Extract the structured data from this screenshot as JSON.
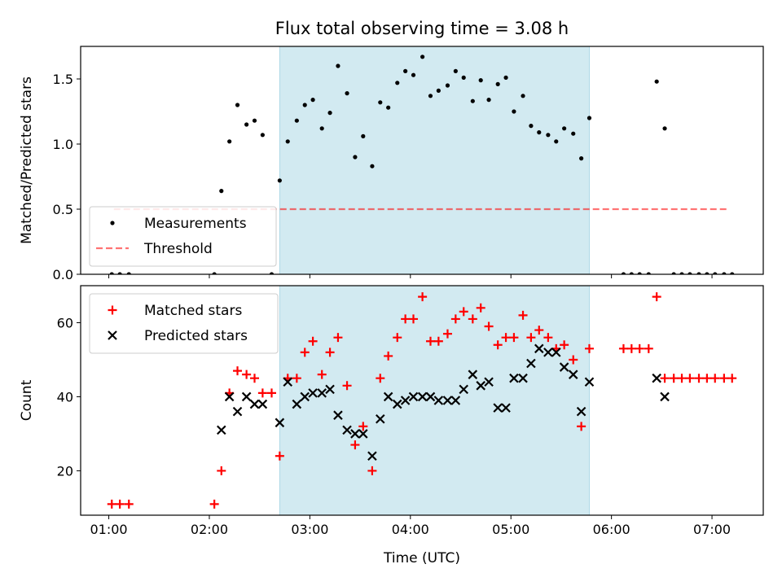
{
  "chart_data": {
    "type": "scatter",
    "title": "Flux total observing time = 3.08 h",
    "xlabel": "Time (UTC)",
    "x_tick_labels": [
      "01:00",
      "02:00",
      "03:00",
      "04:00",
      "05:00",
      "06:00",
      "07:00"
    ],
    "x_ticks_hours": [
      1,
      2,
      3,
      4,
      5,
      6,
      7
    ],
    "xlim_hours": [
      0.72,
      7.51
    ],
    "shaded_interval_hours": [
      2.7,
      5.78
    ],
    "shade_color": "#add8e6",
    "panels": [
      {
        "ylabel": "Matched/Predicted stars",
        "ylim": [
          0,
          1.75
        ],
        "y_ticks": [
          0.0,
          0.5,
          1.0,
          1.5
        ],
        "y_tick_labels": [
          "0.0",
          "0.5",
          "1.0",
          "1.5"
        ],
        "legend_position": "lower-left",
        "legend": [
          "Measurements",
          "Threshold"
        ],
        "threshold": {
          "value": 0.5,
          "x_range": [
            1.05,
            7.17
          ],
          "color": "#ff0000"
        },
        "series": [
          {
            "name": "Measurements",
            "marker": "dot",
            "color": "#000000",
            "points": [
              [
                1.03,
                0.0
              ],
              [
                1.11,
                0.0
              ],
              [
                1.2,
                0.0
              ],
              [
                2.05,
                0.0
              ],
              [
                2.12,
                0.64
              ],
              [
                2.2,
                1.02
              ],
              [
                2.28,
                1.3
              ],
              [
                2.37,
                1.15
              ],
              [
                2.45,
                1.18
              ],
              [
                2.53,
                1.07
              ],
              [
                2.62,
                0.0
              ],
              [
                2.7,
                0.72
              ],
              [
                2.78,
                1.02
              ],
              [
                2.87,
                1.18
              ],
              [
                2.95,
                1.3
              ],
              [
                3.03,
                1.34
              ],
              [
                3.12,
                1.12
              ],
              [
                3.2,
                1.24
              ],
              [
                3.28,
                1.6
              ],
              [
                3.37,
                1.39
              ],
              [
                3.45,
                0.9
              ],
              [
                3.53,
                1.06
              ],
              [
                3.62,
                0.83
              ],
              [
                3.7,
                1.32
              ],
              [
                3.78,
                1.28
              ],
              [
                3.87,
                1.47
              ],
              [
                3.95,
                1.56
              ],
              [
                4.03,
                1.53
              ],
              [
                4.12,
                1.67
              ],
              [
                4.2,
                1.37
              ],
              [
                4.28,
                1.41
              ],
              [
                4.37,
                1.45
              ],
              [
                4.45,
                1.56
              ],
              [
                4.53,
                1.51
              ],
              [
                4.62,
                1.33
              ],
              [
                4.7,
                1.49
              ],
              [
                4.78,
                1.34
              ],
              [
                4.87,
                1.46
              ],
              [
                4.95,
                1.51
              ],
              [
                5.03,
                1.25
              ],
              [
                5.12,
                1.37
              ],
              [
                5.2,
                1.14
              ],
              [
                5.28,
                1.09
              ],
              [
                5.37,
                1.07
              ],
              [
                5.45,
                1.02
              ],
              [
                5.53,
                1.12
              ],
              [
                5.62,
                1.08
              ],
              [
                5.7,
                0.89
              ],
              [
                5.78,
                1.2
              ],
              [
                6.12,
                0.0
              ],
              [
                6.2,
                0.0
              ],
              [
                6.28,
                0.0
              ],
              [
                6.37,
                0.0
              ],
              [
                6.45,
                1.48
              ],
              [
                6.53,
                1.12
              ],
              [
                6.62,
                0.0
              ],
              [
                6.7,
                0.0
              ],
              [
                6.78,
                0.0
              ],
              [
                6.87,
                0.0
              ],
              [
                6.95,
                0.0
              ],
              [
                7.03,
                0.0
              ],
              [
                7.12,
                0.0
              ],
              [
                7.2,
                0.0
              ]
            ]
          }
        ]
      },
      {
        "ylabel": "Count",
        "ylim": [
          8,
          70
        ],
        "y_ticks": [
          20,
          40,
          60
        ],
        "y_tick_labels": [
          "20",
          "40",
          "60"
        ],
        "legend_position": "upper-left",
        "legend": [
          "Matched stars",
          "Predicted stars"
        ],
        "series": [
          {
            "name": "Matched stars",
            "marker": "plus",
            "color": "#ff0000",
            "points": [
              [
                1.03,
                11
              ],
              [
                1.11,
                11
              ],
              [
                1.2,
                11
              ],
              [
                2.05,
                11
              ],
              [
                2.12,
                20
              ],
              [
                2.2,
                41
              ],
              [
                2.28,
                47
              ],
              [
                2.37,
                46
              ],
              [
                2.45,
                45
              ],
              [
                2.53,
                41
              ],
              [
                2.62,
                41
              ],
              [
                2.7,
                24
              ],
              [
                2.78,
                45
              ],
              [
                2.87,
                45
              ],
              [
                2.95,
                52
              ],
              [
                3.03,
                55
              ],
              [
                3.12,
                46
              ],
              [
                3.2,
                52
              ],
              [
                3.28,
                56
              ],
              [
                3.37,
                43
              ],
              [
                3.45,
                27
              ],
              [
                3.53,
                32
              ],
              [
                3.62,
                20
              ],
              [
                3.7,
                45
              ],
              [
                3.78,
                51
              ],
              [
                3.87,
                56
              ],
              [
                3.95,
                61
              ],
              [
                4.03,
                61
              ],
              [
                4.12,
                67
              ],
              [
                4.2,
                55
              ],
              [
                4.28,
                55
              ],
              [
                4.37,
                57
              ],
              [
                4.45,
                61
              ],
              [
                4.53,
                63
              ],
              [
                4.62,
                61
              ],
              [
                4.7,
                64
              ],
              [
                4.78,
                59
              ],
              [
                4.87,
                54
              ],
              [
                4.95,
                56
              ],
              [
                5.03,
                56
              ],
              [
                5.12,
                62
              ],
              [
                5.2,
                56
              ],
              [
                5.28,
                58
              ],
              [
                5.37,
                56
              ],
              [
                5.45,
                53
              ],
              [
                5.53,
                54
              ],
              [
                5.62,
                50
              ],
              [
                5.7,
                32
              ],
              [
                5.78,
                53
              ],
              [
                6.12,
                53
              ],
              [
                6.2,
                53
              ],
              [
                6.28,
                53
              ],
              [
                6.37,
                53
              ],
              [
                6.45,
                67
              ],
              [
                6.53,
                45
              ],
              [
                6.62,
                45
              ],
              [
                6.7,
                45
              ],
              [
                6.78,
                45
              ],
              [
                6.87,
                45
              ],
              [
                6.95,
                45
              ],
              [
                7.03,
                45
              ],
              [
                7.12,
                45
              ],
              [
                7.2,
                45
              ]
            ]
          },
          {
            "name": "Predicted stars",
            "marker": "x",
            "color": "#000000",
            "points": [
              [
                2.12,
                31
              ],
              [
                2.2,
                40
              ],
              [
                2.28,
                36
              ],
              [
                2.37,
                40
              ],
              [
                2.45,
                38
              ],
              [
                2.53,
                38
              ],
              [
                2.7,
                33
              ],
              [
                2.78,
                44
              ],
              [
                2.87,
                38
              ],
              [
                2.95,
                40
              ],
              [
                3.03,
                41
              ],
              [
                3.12,
                41
              ],
              [
                3.2,
                42
              ],
              [
                3.28,
                35
              ],
              [
                3.37,
                31
              ],
              [
                3.45,
                30
              ],
              [
                3.53,
                30
              ],
              [
                3.62,
                24
              ],
              [
                3.7,
                34
              ],
              [
                3.78,
                40
              ],
              [
                3.87,
                38
              ],
              [
                3.95,
                39
              ],
              [
                4.03,
                40
              ],
              [
                4.12,
                40
              ],
              [
                4.2,
                40
              ],
              [
                4.28,
                39
              ],
              [
                4.37,
                39
              ],
              [
                4.45,
                39
              ],
              [
                4.53,
                42
              ],
              [
                4.62,
                46
              ],
              [
                4.7,
                43
              ],
              [
                4.78,
                44
              ],
              [
                4.87,
                37
              ],
              [
                4.95,
                37
              ],
              [
                5.03,
                45
              ],
              [
                5.12,
                45
              ],
              [
                5.2,
                49
              ],
              [
                5.28,
                53
              ],
              [
                5.37,
                52
              ],
              [
                5.45,
                52
              ],
              [
                5.53,
                48
              ],
              [
                5.62,
                46
              ],
              [
                5.7,
                36
              ],
              [
                5.78,
                44
              ],
              [
                6.45,
                45
              ],
              [
                6.53,
                40
              ]
            ]
          }
        ]
      }
    ]
  }
}
